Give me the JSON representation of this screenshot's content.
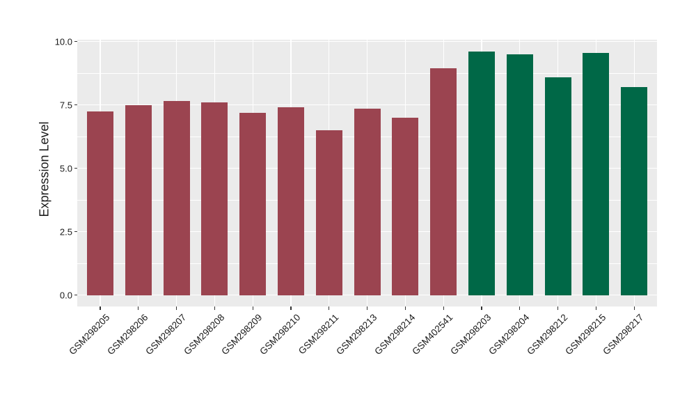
{
  "chart_data": {
    "type": "bar",
    "title": "",
    "xlabel": "",
    "ylabel": "Expression Level",
    "categories": [
      "GSM298205",
      "GSM298206",
      "GSM298207",
      "GSM298208",
      "GSM298209",
      "GSM298210",
      "GSM298211",
      "GSM298213",
      "GSM298214",
      "GSM402541",
      "GSM298203",
      "GSM298204",
      "GSM298212",
      "GSM298215",
      "GSM298217"
    ],
    "values": [
      7.25,
      7.5,
      7.65,
      7.6,
      7.2,
      7.4,
      6.5,
      7.35,
      7.0,
      8.95,
      9.6,
      9.5,
      8.6,
      9.55,
      8.2
    ],
    "bar_groups": [
      "group1",
      "group1",
      "group1",
      "group1",
      "group1",
      "group1",
      "group1",
      "group1",
      "group1",
      "group1",
      "group2",
      "group2",
      "group2",
      "group2",
      "group2"
    ],
    "group_colors": {
      "group1": "#9B4450",
      "group2": "#006847"
    },
    "ylim": [
      0,
      10
    ],
    "yticks": [
      0,
      2.5,
      5.0,
      7.5,
      10.0
    ],
    "ytick_labels": [
      "0.0",
      "2.5",
      "5.0",
      "7.5",
      "10.0"
    ],
    "yminor_ticks": [
      1.25,
      3.75,
      6.25,
      8.75
    ],
    "legend": "none",
    "grid": "on",
    "panel_bg": "#EBEBEB",
    "grid_color": "#FFFFFF",
    "text_color": "#1A1A1A"
  }
}
